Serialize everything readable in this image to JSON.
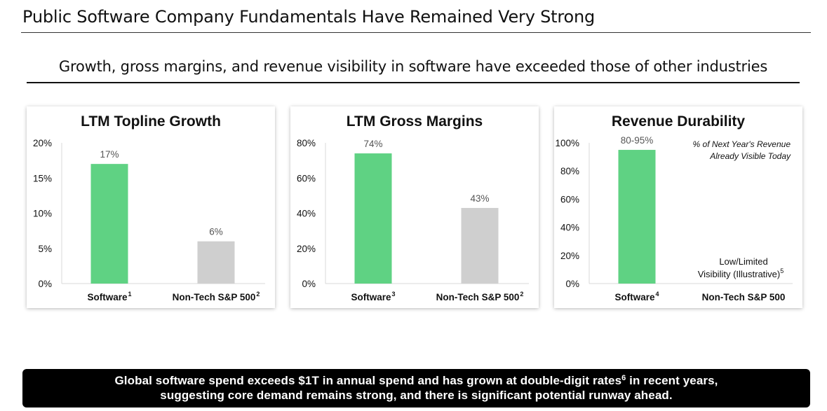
{
  "header": {
    "title": "Public Software Company Fundamentals Have Remained Very Strong",
    "subtitle": "Growth, gross margins, and revenue visibility in software have exceeded those of other industries"
  },
  "colors": {
    "software": "#5fd283",
    "other": "#cfcfcf"
  },
  "chart_data": [
    {
      "type": "bar",
      "title": "LTM Topline Growth",
      "categories": [
        "Software",
        "Non-Tech S&P 500"
      ],
      "footnotes": [
        "1",
        "2"
      ],
      "values": [
        17,
        6
      ],
      "value_labels": [
        "17%",
        "6%"
      ],
      "ylim": [
        0,
        20
      ],
      "yticks": [
        0,
        5,
        10,
        15,
        20
      ],
      "ytick_labels": [
        "0%",
        "5%",
        "10%",
        "15%",
        "20%"
      ],
      "xlabel": "",
      "ylabel": ""
    },
    {
      "type": "bar",
      "title": "LTM Gross Margins",
      "categories": [
        "Software",
        "Non-Tech S&P 500"
      ],
      "footnotes": [
        "3",
        "2"
      ],
      "values": [
        74,
        43
      ],
      "value_labels": [
        "74%",
        "43%"
      ],
      "ylim": [
        0,
        80
      ],
      "yticks": [
        0,
        20,
        40,
        60,
        80
      ],
      "ytick_labels": [
        "0%",
        "20%",
        "40%",
        "60%",
        "80%"
      ],
      "xlabel": "",
      "ylabel": ""
    },
    {
      "type": "bar",
      "title": "Revenue Durability",
      "categories": [
        "Software",
        "Non-Tech S&P 500"
      ],
      "footnotes": [
        "4",
        ""
      ],
      "values": [
        95,
        null
      ],
      "value_labels": [
        "80-95%",
        ""
      ],
      "ylim": [
        0,
        100
      ],
      "yticks": [
        0,
        20,
        40,
        60,
        80,
        100
      ],
      "ytick_labels": [
        "0%",
        "20%",
        "40%",
        "60%",
        "80%",
        "100%"
      ],
      "annotation_lines": [
        "% of Next Year's Revenue",
        "Already Visible Today"
      ],
      "callout_lines": [
        "Low/Limited",
        "Visibility (Illustrative)"
      ],
      "callout_footnote": "5",
      "xlabel": "",
      "ylabel": ""
    }
  ],
  "banner": {
    "line1_before": "Global software spend exceeds $1T in annual spend and has grown at double-digit rates",
    "line1_footnote": "6",
    "line1_after": " in recent years,",
    "line2": "suggesting core demand remains strong, and there is significant potential runway ahead."
  }
}
